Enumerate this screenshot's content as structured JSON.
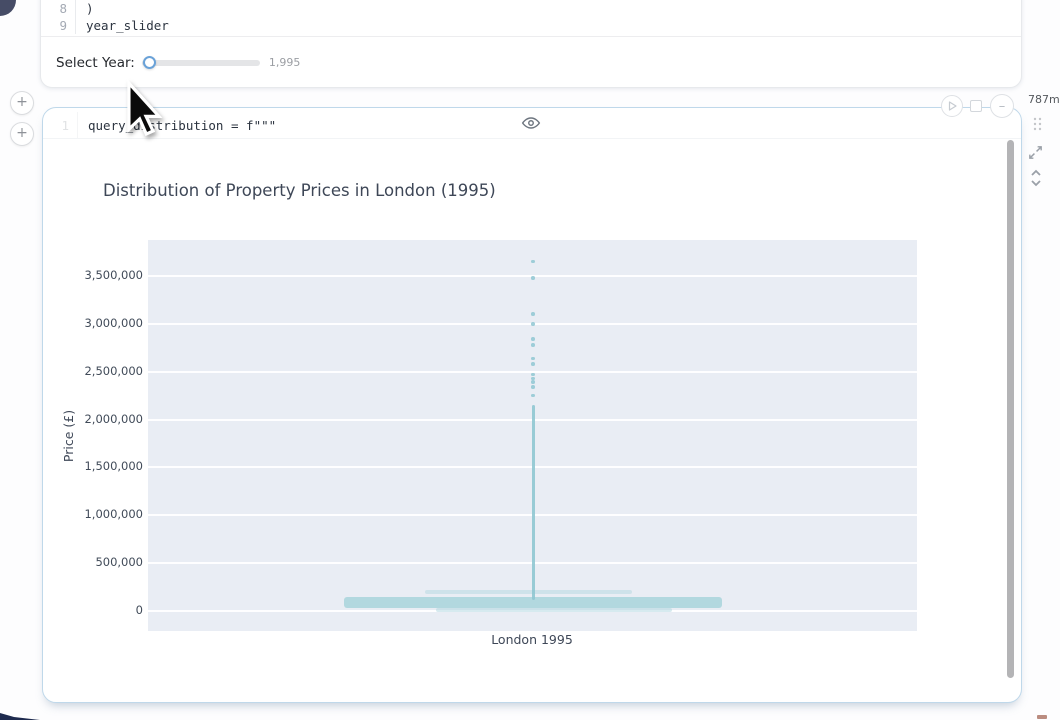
{
  "cell1": {
    "code": {
      "lines": [
        {
          "number": "8",
          "text": ")"
        },
        {
          "number": "9",
          "text": "year_slider"
        }
      ]
    },
    "output": {
      "slider_label": "Select Year:",
      "slider_value": "1,995"
    }
  },
  "gutter": {
    "add_icon": "+"
  },
  "cell2": {
    "collapsed_code": {
      "number": "1",
      "text": "query_distribution = f\"\"\""
    },
    "collapse_icon": "–",
    "runtime_badge": "787m"
  },
  "chart_data": {
    "type": "scatter",
    "subtype": "jittered-strip",
    "title": "Distribution of Property Prices in London (1995)",
    "xlabel": "London 1995",
    "ylabel": "Price (£)",
    "categories": [
      "London 1995"
    ],
    "ylim": [
      -150000,
      3900000
    ],
    "grid": true,
    "legend": "none",
    "plot_bg": "#e9edf4",
    "marker_color": "#8fc7d2",
    "band_color": "#a6d3db",
    "yticks": [
      0,
      500000,
      1000000,
      1500000,
      2000000,
      2500000,
      3000000,
      3500000
    ],
    "ytick_labels": [
      "0",
      "500,000",
      "1,000,000",
      "1,500,000",
      "2,000,000",
      "2,500,000",
      "3,000,000",
      "3,500,000"
    ],
    "outlier_points": [
      3650000,
      3480000,
      3100000,
      3000000,
      2840000,
      2780000,
      2640000,
      2580000,
      2470000,
      2430000,
      2390000,
      2340000,
      2250000
    ],
    "dense_column": {
      "from": 120000,
      "to": 2150000
    },
    "jitter_bands": [
      {
        "price": 200000,
        "left_frac": 0.14,
        "right_frac": 0.129,
        "thickness": 3.5,
        "opacity": 0.4
      },
      {
        "price": 94000,
        "left_frac": 0.246,
        "right_frac": 0.246,
        "thickness": 11,
        "opacity": 0.82
      },
      {
        "price": 10000,
        "left_frac": 0.126,
        "right_frac": 0.181,
        "thickness": 4,
        "opacity": 0.45
      }
    ]
  },
  "colors": {
    "accent_blue": "#6aa2d8",
    "cell_border": "#bfd8ea",
    "teal": "#a6d3db"
  }
}
